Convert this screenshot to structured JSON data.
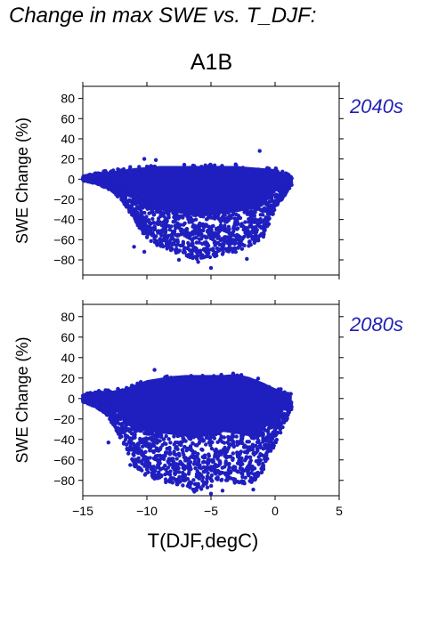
{
  "figure_title": "Change in max SWE vs. T_DJF:",
  "scenario": "A1B",
  "colors": {
    "points": "#1f1fbf",
    "text": "#1f1fb5",
    "axis": "#000000"
  },
  "chart_data": [
    {
      "type": "scatter",
      "period_label": "2040s",
      "ylabel": "SWE Change (%)",
      "xlabel": "",
      "xlim": [
        -15,
        5
      ],
      "ylim": [
        -95,
        92
      ],
      "xticks": [
        -15,
        -10,
        -5,
        0,
        5
      ],
      "yticks": [
        -80,
        -60,
        -40,
        -20,
        0,
        20,
        40,
        60,
        80
      ],
      "show_x_tick_labels": false,
      "envelope": {
        "x": [
          -15,
          -14,
          -13,
          -12,
          -11,
          -10,
          -9,
          -8,
          -7,
          -6,
          -5,
          -4,
          -3,
          -2,
          -1,
          0,
          1.3
        ],
        "upper": [
          3,
          6,
          9,
          11,
          13,
          14,
          15,
          15,
          15,
          15,
          15,
          15,
          15,
          14,
          13,
          12,
          3
        ],
        "lower": [
          -2,
          -4,
          -10,
          -20,
          -40,
          -60,
          -68,
          -72,
          -76,
          -80,
          -78,
          -74,
          -72,
          -66,
          -60,
          -30,
          -6
        ]
      },
      "outliers": [
        {
          "x": -10.2,
          "y": 20
        },
        {
          "x": -9.3,
          "y": 19
        },
        {
          "x": -1.2,
          "y": 28
        },
        {
          "x": -5.0,
          "y": -88
        },
        {
          "x": -6.0,
          "y": -82
        },
        {
          "x": -7.5,
          "y": -80
        },
        {
          "x": -2.2,
          "y": -79
        },
        {
          "x": -10.2,
          "y": -72
        },
        {
          "x": -11.0,
          "y": -67
        }
      ]
    },
    {
      "type": "scatter",
      "period_label": "2080s",
      "ylabel": "SWE Change (%)",
      "xlabel": "T(DJF,degC)",
      "xlim": [
        -15,
        5
      ],
      "ylim": [
        -95,
        92
      ],
      "xticks": [
        -15,
        -10,
        -5,
        0,
        5
      ],
      "yticks": [
        -80,
        -60,
        -40,
        -20,
        0,
        20,
        40,
        60,
        80
      ],
      "xtick_labels": [
        "−15",
        "−10",
        "−5",
        "0",
        "5"
      ],
      "ytick_labels": [
        "−80",
        "−60",
        "−40",
        "−20",
        "0",
        "20",
        "40",
        "60",
        "80"
      ],
      "show_x_tick_labels": true,
      "envelope": {
        "x": [
          -15,
          -14,
          -13,
          -12,
          -11,
          -10,
          -9,
          -8,
          -7,
          -6,
          -5,
          -4,
          -3,
          -2,
          -1,
          0,
          1.3
        ],
        "upper": [
          4,
          7,
          9,
          11,
          15,
          20,
          22,
          24,
          25,
          25,
          25,
          25,
          26,
          23,
          18,
          12,
          6
        ],
        "lower": [
          -3,
          -8,
          -18,
          -40,
          -66,
          -76,
          -80,
          -84,
          -88,
          -90,
          -86,
          -80,
          -84,
          -86,
          -72,
          -45,
          -10
        ]
      },
      "outliers": [
        {
          "x": -9.4,
          "y": 28
        },
        {
          "x": -5.0,
          "y": -93
        },
        {
          "x": -4.1,
          "y": -90
        },
        {
          "x": -1.7,
          "y": -89
        },
        {
          "x": -6.3,
          "y": -91
        },
        {
          "x": -11.3,
          "y": -65
        },
        {
          "x": -13.0,
          "y": -43
        }
      ]
    }
  ]
}
